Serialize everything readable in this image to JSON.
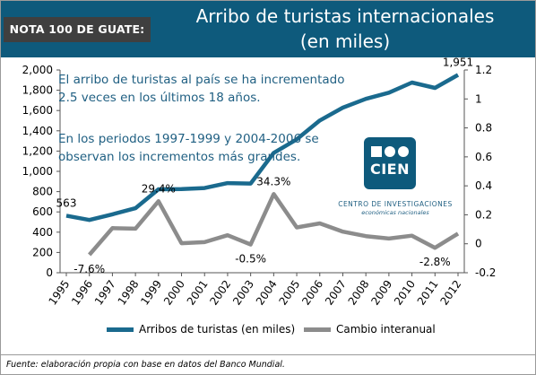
{
  "header": {
    "badge": "NOTA 100 DE GUATE:",
    "title_line1": "Arribo de turistas internacionales",
    "title_line2": "(en miles)"
  },
  "annotations": {
    "para1": "El arribo de turistas al país se ha incrementado 2.5 veces en los últimos 18 años.",
    "para2": "En los periodos 1997-1999 y 2004-2006 se observan los incrementos más grandes."
  },
  "logo": {
    "word": "CIEN",
    "line1": "CENTRO DE INVESTIGACIONES",
    "line2": "económicas nacionales"
  },
  "colors": {
    "brand": "#0e5a7c",
    "series_arribos": "#1a6a8e",
    "series_cambio": "#8c8c8c"
  },
  "chart_data": {
    "type": "line",
    "x": [
      "1995",
      "1996",
      "1997",
      "1998",
      "1999",
      "2000",
      "2001",
      "2002",
      "2003",
      "2004",
      "2005",
      "2006",
      "2007",
      "2008",
      "2009",
      "2010",
      "2011",
      "2012"
    ],
    "series": [
      {
        "name": "Arribos de turistas (en miles)",
        "axis": "left",
        "values": [
          563,
          520,
          576,
          636,
          823,
          826,
          835,
          884,
          880,
          1182,
          1316,
          1502,
          1628,
          1715,
          1776,
          1876,
          1823,
          1951
        ]
      },
      {
        "name": "Cambio interanual",
        "axis": "right",
        "values": [
          null,
          -0.076,
          0.108,
          0.104,
          0.294,
          0.004,
          0.011,
          0.059,
          -0.005,
          0.343,
          0.113,
          0.141,
          0.084,
          0.053,
          0.036,
          0.056,
          -0.028,
          0.07
        ]
      }
    ],
    "data_labels": [
      {
        "series": 0,
        "index": 0,
        "text": "563"
      },
      {
        "series": 0,
        "index": 17,
        "text": "1,951"
      },
      {
        "series": 1,
        "index": 1,
        "text": "-7.6%"
      },
      {
        "series": 1,
        "index": 4,
        "text": "29.4%"
      },
      {
        "series": 1,
        "index": 8,
        "text": "-0.5%"
      },
      {
        "series": 1,
        "index": 9,
        "text": "34.3%"
      },
      {
        "series": 1,
        "index": 16,
        "text": "-2.8%"
      }
    ],
    "y_left": {
      "min": 0,
      "max": 2000,
      "step": 200,
      "ticks": [
        "0",
        "200",
        "400",
        "600",
        "800",
        "1,000",
        "1,200",
        "1,400",
        "1,600",
        "1,800",
        "2,000"
      ]
    },
    "y_right": {
      "min": -0.2,
      "max": 1.2,
      "step": 0.2,
      "ticks": [
        "-0.2",
        "0",
        "0.2",
        "0.4",
        "0.6",
        "0.8",
        "1",
        "1.2"
      ]
    },
    "grid": false,
    "legend_position": "bottom"
  },
  "footer": {
    "source": "Fuente: elaboración propia con base en datos del Banco Mundial."
  }
}
